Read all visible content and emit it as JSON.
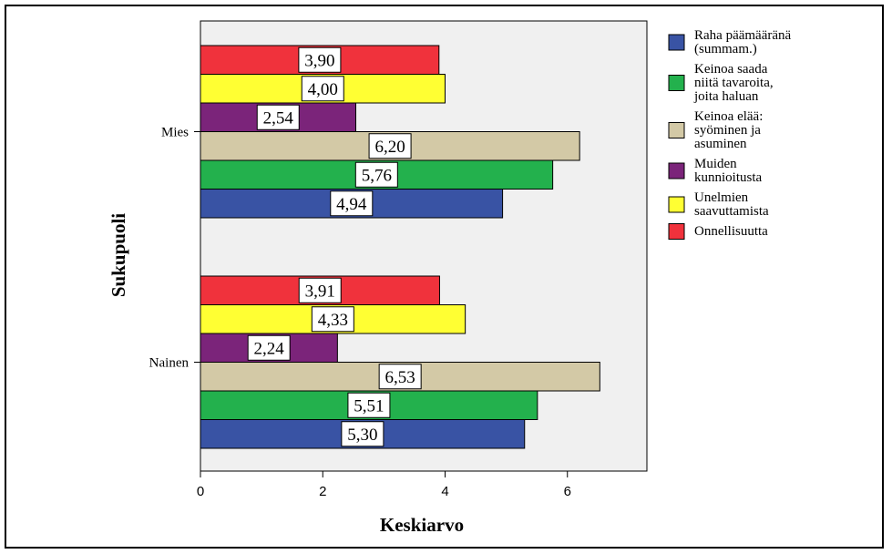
{
  "chart_data": {
    "type": "bar",
    "orientation": "horizontal",
    "categories": [
      "Mies",
      "Nainen"
    ],
    "series": [
      {
        "name": "Raha päämääränä (summam.)",
        "legend_lines": [
          "Raha päämääränä",
          "(summam.)"
        ],
        "color": "#3953a4",
        "values": [
          4.94,
          5.3
        ],
        "labels": [
          "4,94",
          "5,30"
        ]
      },
      {
        "name": "Keinoa saada niitä tavaroita, joita haluan",
        "legend_lines": [
          " Keinoa saada",
          "niitä tavaroita,",
          "joita haluan"
        ],
        "color": "#23b14d",
        "values": [
          5.76,
          5.51
        ],
        "labels": [
          "5,76",
          "5,51"
        ]
      },
      {
        "name": "Keinoa elää: syöminen ja asuminen",
        "legend_lines": [
          "Keinoa elää:",
          "syöminen ja",
          "asuminen"
        ],
        "color": "#d3c9a6",
        "values": [
          6.2,
          6.53
        ],
        "labels": [
          "6,20",
          "6,53"
        ]
      },
      {
        "name": "Muiden kunnioitusta",
        "legend_lines": [
          "Muiden",
          "kunnioitusta"
        ],
        "color": "#7b247a",
        "values": [
          2.54,
          2.24
        ],
        "labels": [
          "2,54",
          "2,24"
        ]
      },
      {
        "name": "Unelmien saavuttamista",
        "legend_lines": [
          "Unelmien",
          "saavuttamista"
        ],
        "color": "#ffff33",
        "values": [
          4.0,
          4.33
        ],
        "labels": [
          "4,00",
          "4,33"
        ]
      },
      {
        "name": "Onnellisuutta",
        "legend_lines": [
          " Onnellisuutta"
        ],
        "color": "#f0323c",
        "values": [
          3.9,
          3.91
        ],
        "labels": [
          "3,90",
          "3,91"
        ]
      }
    ],
    "xlabel": "Keskiarvo",
    "ylabel": "Sukupuoli",
    "xlim": [
      0,
      7.3
    ],
    "xticks": [
      0,
      2,
      4,
      6
    ],
    "tick_labels": [
      "0",
      "2",
      "4",
      "6"
    ],
    "grid": false,
    "legend_position": "right",
    "plot_background": "#f0f0f0"
  }
}
